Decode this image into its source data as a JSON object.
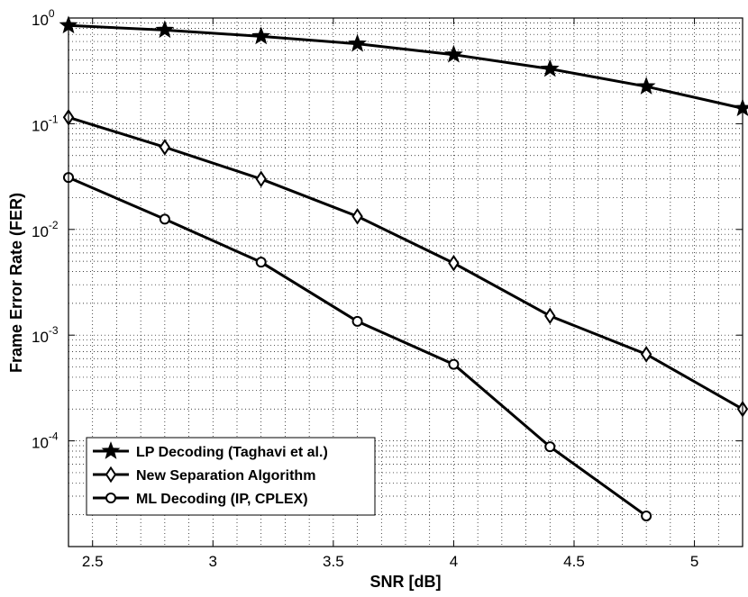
{
  "chart_data": {
    "type": "line",
    "xlabel": "SNR [dB]",
    "ylabel": "Frame Error Rate (FER)",
    "xlim": [
      2.4,
      5.2
    ],
    "ylim": [
      1e-05,
      1
    ],
    "yscale": "log",
    "grid": true,
    "legend_position": "bottom-left",
    "x_ticks": [
      2.5,
      3,
      3.5,
      4,
      4.5,
      5
    ],
    "x_tick_labels": [
      "2.5",
      "3",
      "3.5",
      "4",
      "4.5",
      "5"
    ],
    "y_ticks": [
      {
        "value": 1,
        "base": "10",
        "exp": "0"
      },
      {
        "value": 0.1,
        "base": "10",
        "exp": "-1"
      },
      {
        "value": 0.01,
        "base": "10",
        "exp": "-2"
      },
      {
        "value": 0.001,
        "base": "10",
        "exp": "-3"
      },
      {
        "value": 0.0001,
        "base": "10",
        "exp": "-4"
      }
    ],
    "series": [
      {
        "name": "LP Decoding (Taghavi et al.)",
        "marker": "star",
        "x": [
          2.4,
          2.8,
          3.2,
          3.6,
          4.0,
          4.4,
          4.8,
          5.2
        ],
        "values": [
          0.85,
          0.77,
          0.67,
          0.57,
          0.45,
          0.33,
          0.225,
          0.14
        ]
      },
      {
        "name": "New Separation Algorithm",
        "marker": "diamond",
        "x": [
          2.4,
          2.8,
          3.2,
          3.6,
          4.0,
          4.4,
          4.8,
          5.2
        ],
        "values": [
          0.115,
          0.06,
          0.03,
          0.0133,
          0.0048,
          0.00152,
          0.00066,
          0.0002
        ]
      },
      {
        "name": "ML Decoding (IP, CPLEX)",
        "marker": "circle",
        "x": [
          2.4,
          2.8,
          3.2,
          3.6,
          4.0,
          4.4,
          4.8
        ],
        "values": [
          0.031,
          0.0125,
          0.0049,
          0.00135,
          0.00053,
          8.8e-05,
          1.95e-05
        ]
      }
    ]
  }
}
